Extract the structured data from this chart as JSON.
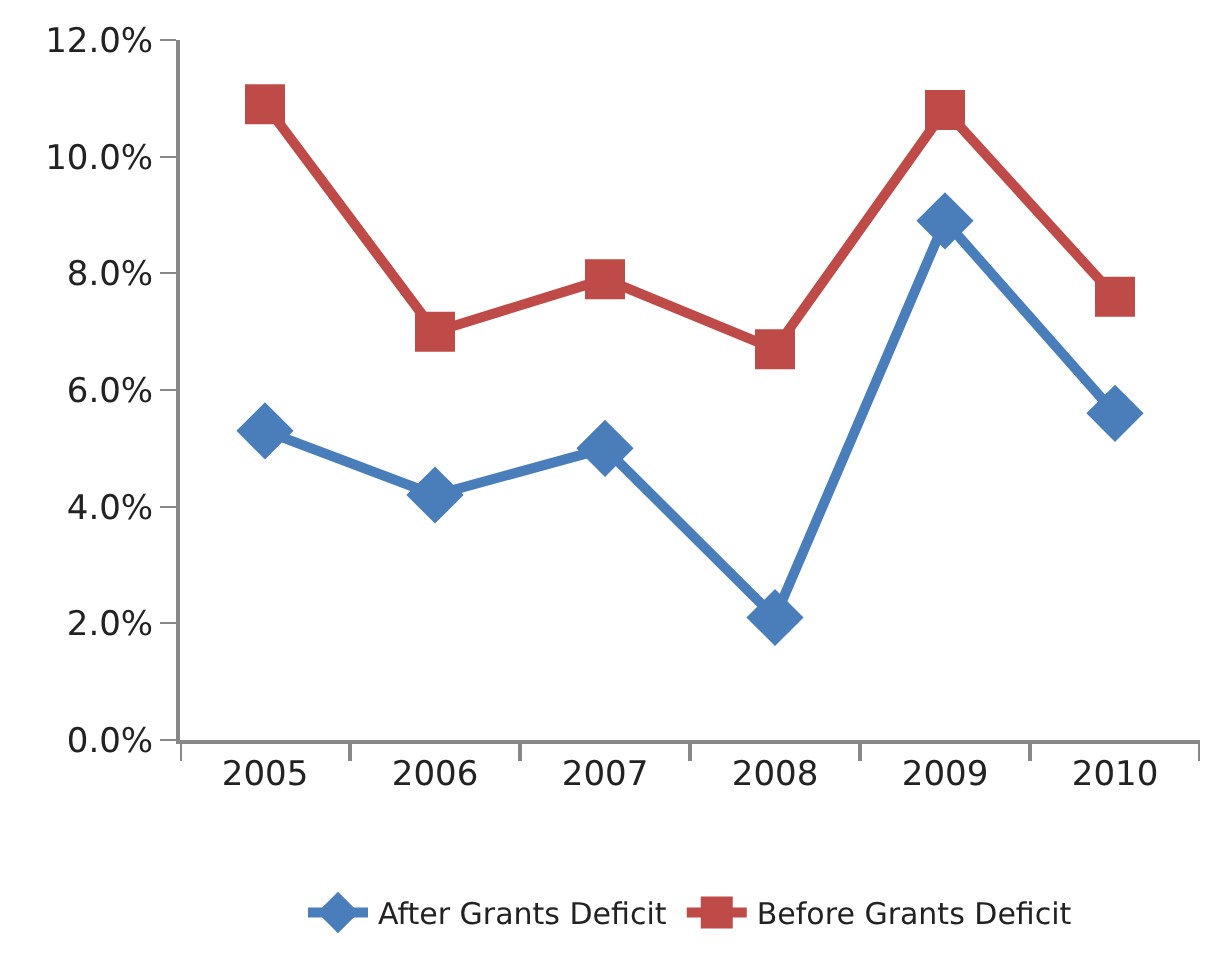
{
  "chart_data": {
    "type": "line",
    "categories": [
      "2005",
      "2006",
      "2007",
      "2008",
      "2009",
      "2010"
    ],
    "series": [
      {
        "name": "After Grants Deficit",
        "color": "#4a7ebb",
        "marker": "diamond",
        "values": [
          5.3,
          4.2,
          5.0,
          2.1,
          8.9,
          5.6
        ]
      },
      {
        "name": "Before Grants Deficit",
        "color": "#be4b48",
        "marker": "square",
        "values": [
          10.9,
          7.0,
          7.9,
          6.7,
          10.8,
          7.6
        ]
      }
    ],
    "ylim": [
      0,
      12
    ],
    "yticks": [
      {
        "value": 0,
        "label": "0.0%"
      },
      {
        "value": 2,
        "label": "2.0%"
      },
      {
        "value": 4,
        "label": "4.0%"
      },
      {
        "value": 6,
        "label": "6.0%"
      },
      {
        "value": 8,
        "label": "8.0%"
      },
      {
        "value": 10,
        "label": "10.0%"
      },
      {
        "value": 12,
        "label": "12.0%"
      }
    ],
    "legend": "bottom",
    "line_style": "solid"
  }
}
